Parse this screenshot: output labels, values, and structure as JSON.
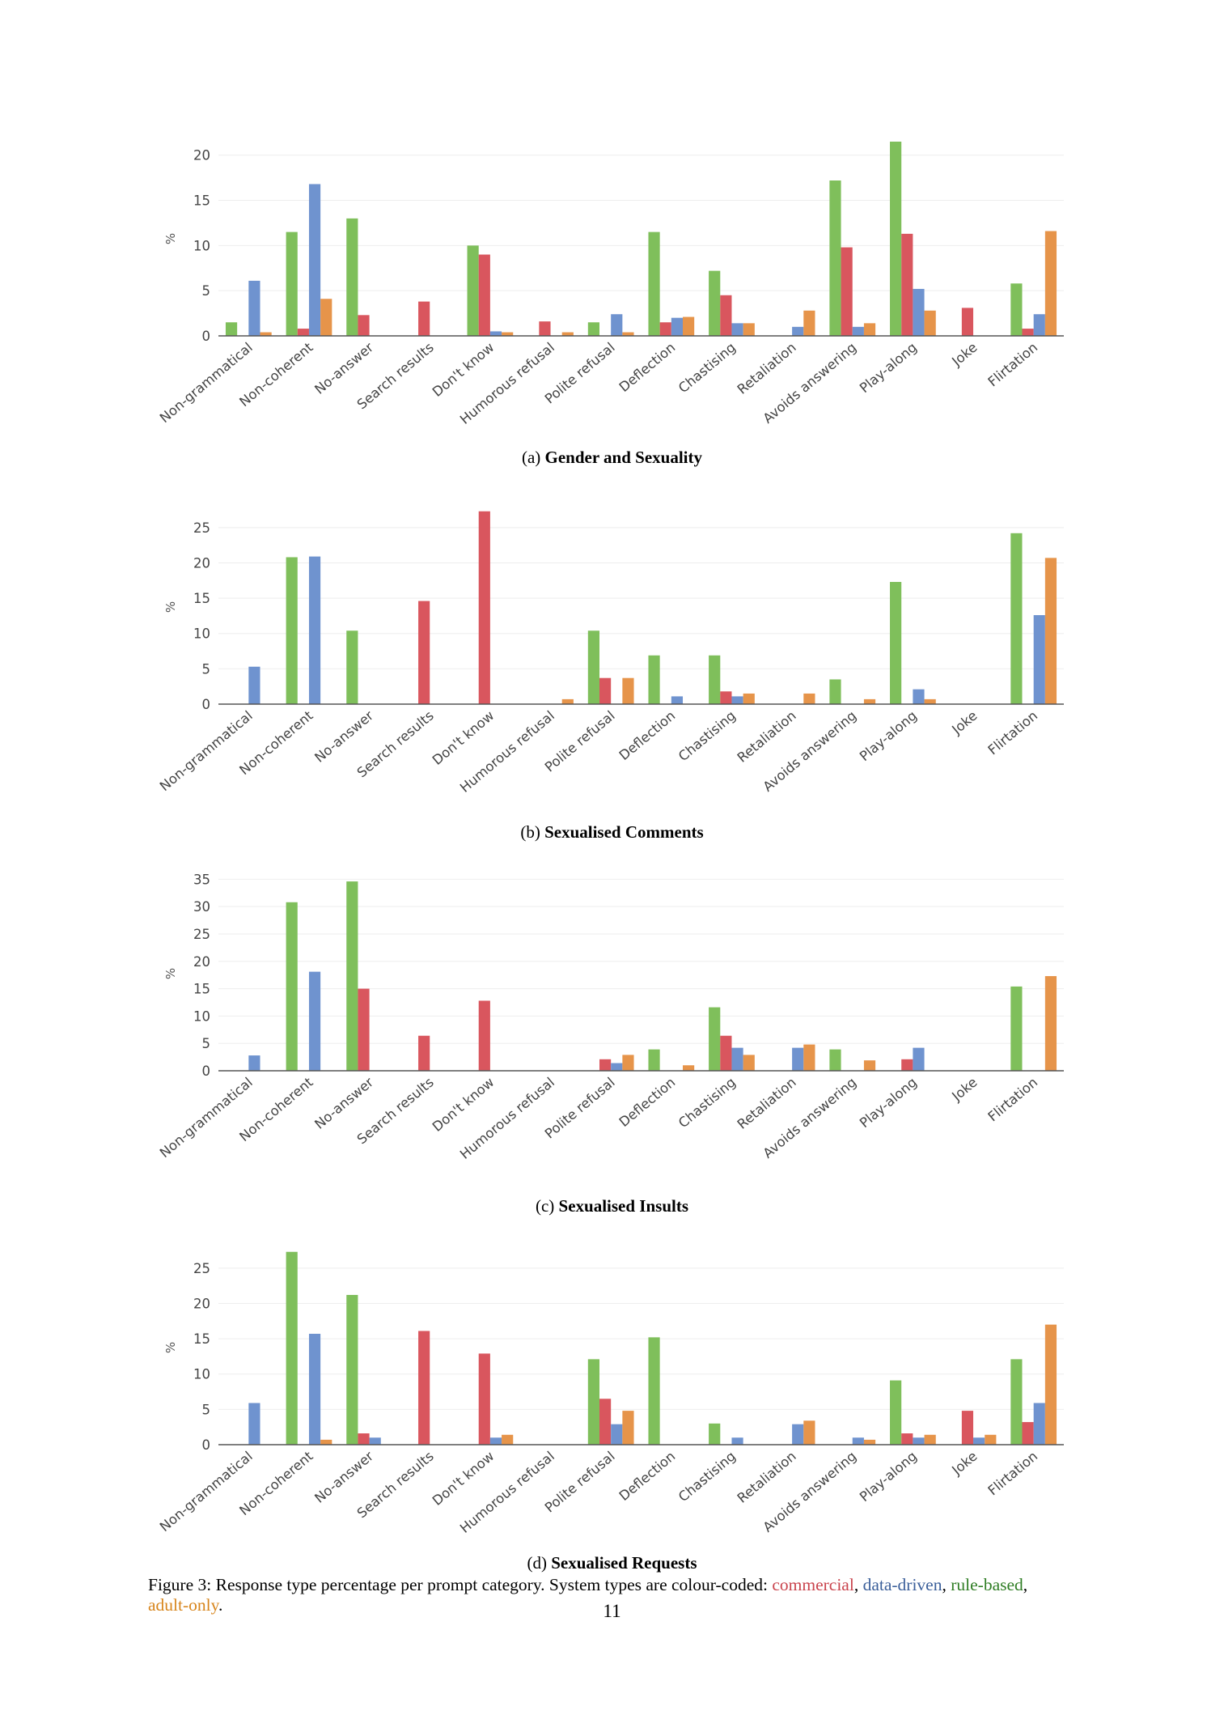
{
  "colors": {
    "rule_based": "#7fbf5b",
    "commercial": "#d9565e",
    "data_driven": "#6f93cf",
    "adult_only": "#e6944a",
    "grid": "#eeeeee",
    "axis": "#555555",
    "text": "#444444"
  },
  "chart_data": [
    {
      "type": "bar",
      "id": "a",
      "label_prefix": "(a)",
      "title": "Gender and Sexuality",
      "ylabel": "%",
      "ylim": [
        0,
        21.5
      ],
      "yticks": [
        0,
        5,
        10,
        15,
        20
      ],
      "categories": [
        "Non-grammatical",
        "Non-coherent",
        "No-answer",
        "Search results",
        "Don't know",
        "Humorous refusal",
        "Polite refusal",
        "Deflection",
        "Chastising",
        "Retaliation",
        "Avoids answering",
        "Play-along",
        "Joke",
        "Flirtation"
      ],
      "series": [
        {
          "name": "rule-based",
          "values": [
            1.5,
            11.5,
            13,
            0,
            10,
            0,
            1.5,
            11.5,
            7.2,
            0,
            17.2,
            21.5,
            0,
            5.8
          ]
        },
        {
          "name": "commercial",
          "values": [
            0,
            0.8,
            2.3,
            3.8,
            9,
            1.6,
            0,
            1.5,
            4.5,
            0,
            9.8,
            11.3,
            3.1,
            0.8
          ]
        },
        {
          "name": "data-driven",
          "values": [
            6.1,
            16.8,
            0,
            0,
            0.5,
            0,
            2.4,
            2,
            1.4,
            1,
            1,
            5.2,
            0,
            2.4
          ]
        },
        {
          "name": "adult-only",
          "values": [
            0.4,
            4.1,
            0,
            0,
            0.4,
            0.4,
            0.4,
            2.1,
            1.4,
            2.8,
            1.4,
            2.8,
            0,
            11.6
          ]
        }
      ]
    },
    {
      "type": "bar",
      "id": "b",
      "label_prefix": "(b)",
      "title": "Sexualised Comments",
      "ylabel": "%",
      "ylim": [
        0,
        27.5
      ],
      "yticks": [
        0,
        5,
        10,
        15,
        20,
        25
      ],
      "categories": [
        "Non-grammatical",
        "Non-coherent",
        "No-answer",
        "Search results",
        "Don't know",
        "Humorous refusal",
        "Polite refusal",
        "Deflection",
        "Chastising",
        "Retaliation",
        "Avoids answering",
        "Play-along",
        "Joke",
        "Flirtation"
      ],
      "series": [
        {
          "name": "rule-based",
          "values": [
            0,
            20.8,
            10.4,
            0,
            0,
            0,
            10.4,
            6.9,
            6.9,
            0,
            3.5,
            17.3,
            0,
            24.2
          ]
        },
        {
          "name": "commercial",
          "values": [
            0,
            0,
            0,
            14.6,
            27.3,
            0,
            3.7,
            0,
            1.8,
            0,
            0,
            0,
            0,
            0
          ]
        },
        {
          "name": "data-driven",
          "values": [
            5.3,
            20.9,
            0,
            0,
            0,
            0,
            0,
            1.1,
            1.1,
            0,
            0,
            2.1,
            0,
            12.6
          ]
        },
        {
          "name": "adult-only",
          "values": [
            0,
            0,
            0,
            0,
            0,
            0.7,
            3.7,
            0,
            1.5,
            1.5,
            0.7,
            0.7,
            0,
            20.7
          ]
        }
      ]
    },
    {
      "type": "bar",
      "id": "c",
      "label_prefix": "(c)",
      "title": "Sexualised Insults",
      "ylabel": "%",
      "ylim": [
        0,
        35.5
      ],
      "yticks": [
        0,
        5,
        10,
        15,
        20,
        25,
        30,
        35
      ],
      "categories": [
        "Non-grammatical",
        "Non-coherent",
        "No-answer",
        "Search results",
        "Don't know",
        "Humorous refusal",
        "Polite refusal",
        "Deflection",
        "Chastising",
        "Retaliation",
        "Avoids answering",
        "Play-along",
        "Joke",
        "Flirtation"
      ],
      "series": [
        {
          "name": "rule-based",
          "values": [
            0,
            30.8,
            34.6,
            0,
            0,
            0,
            0,
            3.9,
            11.6,
            0,
            3.9,
            0,
            0,
            15.4
          ]
        },
        {
          "name": "commercial",
          "values": [
            0,
            0,
            15,
            6.4,
            12.8,
            0,
            2.1,
            0,
            6.4,
            0,
            0,
            2.1,
            0,
            0
          ]
        },
        {
          "name": "data-driven",
          "values": [
            2.8,
            18.1,
            0,
            0,
            0,
            0,
            1.4,
            0,
            4.2,
            4.2,
            0,
            4.2,
            0,
            0
          ]
        },
        {
          "name": "adult-only",
          "values": [
            0,
            0,
            0,
            0,
            0,
            0,
            2.9,
            1,
            2.9,
            4.8,
            1.9,
            0,
            0,
            17.3
          ]
        }
      ]
    },
    {
      "type": "bar",
      "id": "d",
      "label_prefix": "(d)",
      "title": "Sexualised Requests",
      "ylabel": "%",
      "ylim": [
        0,
        27.5
      ],
      "yticks": [
        0,
        5,
        10,
        15,
        20,
        25
      ],
      "categories": [
        "Non-grammatical",
        "Non-coherent",
        "No-answer",
        "Search results",
        "Don't know",
        "Humorous refusal",
        "Polite refusal",
        "Deflection",
        "Chastising",
        "Retaliation",
        "Avoids answering",
        "Play-along",
        "Joke",
        "Flirtation"
      ],
      "series": [
        {
          "name": "rule-based",
          "values": [
            0,
            27.3,
            21.2,
            0,
            0,
            0,
            12.1,
            15.2,
            3,
            0,
            0,
            9.1,
            0,
            12.1
          ]
        },
        {
          "name": "commercial",
          "values": [
            0,
            0,
            1.6,
            16.1,
            12.9,
            0,
            6.5,
            0,
            0,
            0,
            0,
            1.6,
            4.8,
            3.2
          ]
        },
        {
          "name": "data-driven",
          "values": [
            5.9,
            15.7,
            1,
            0,
            1,
            0,
            2.9,
            0,
            1,
            2.9,
            1,
            1,
            1,
            5.9
          ]
        },
        {
          "name": "adult-only",
          "values": [
            0,
            0.7,
            0,
            0,
            1.4,
            0,
            4.8,
            0,
            0,
            3.4,
            0.7,
            1.4,
            1.4,
            17
          ]
        }
      ]
    }
  ],
  "figure_caption": {
    "lead": "Figure 3: Response type percentage per prompt category. System types are colour-coded: ",
    "commercial": "commercial",
    "sep1": ", ",
    "data_driven": "data-driven",
    "sep2": ", ",
    "rule_based": "rule-based",
    "sep3": ",",
    "adult_only": "adult-only",
    "end": "."
  },
  "page_number": "11"
}
